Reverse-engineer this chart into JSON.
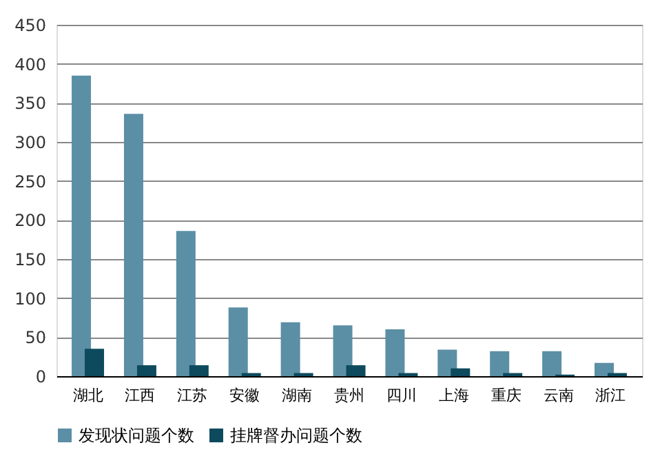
{
  "chart_data": {
    "type": "bar",
    "categories": [
      "湖北",
      "江西",
      "江苏",
      "安徽",
      "湖南",
      "贵州",
      "四川",
      "上海",
      "重庆",
      "云南",
      "浙江"
    ],
    "series": [
      {
        "name": "发现状问题个数",
        "color": "#5b8fa5",
        "values": [
          385,
          336,
          186,
          88,
          69,
          65,
          60,
          34,
          32,
          32,
          17
        ]
      },
      {
        "name": "挂牌督办问题个数",
        "color": "#0d4a5e",
        "values": [
          35,
          14,
          14,
          4,
          4,
          14,
          4,
          10,
          4,
          2,
          4
        ]
      }
    ],
    "ylim": [
      0,
      450
    ],
    "yticks": [
      0,
      50,
      100,
      150,
      200,
      250,
      300,
      350,
      400,
      450
    ],
    "grid": "y",
    "legend": "bottom"
  }
}
